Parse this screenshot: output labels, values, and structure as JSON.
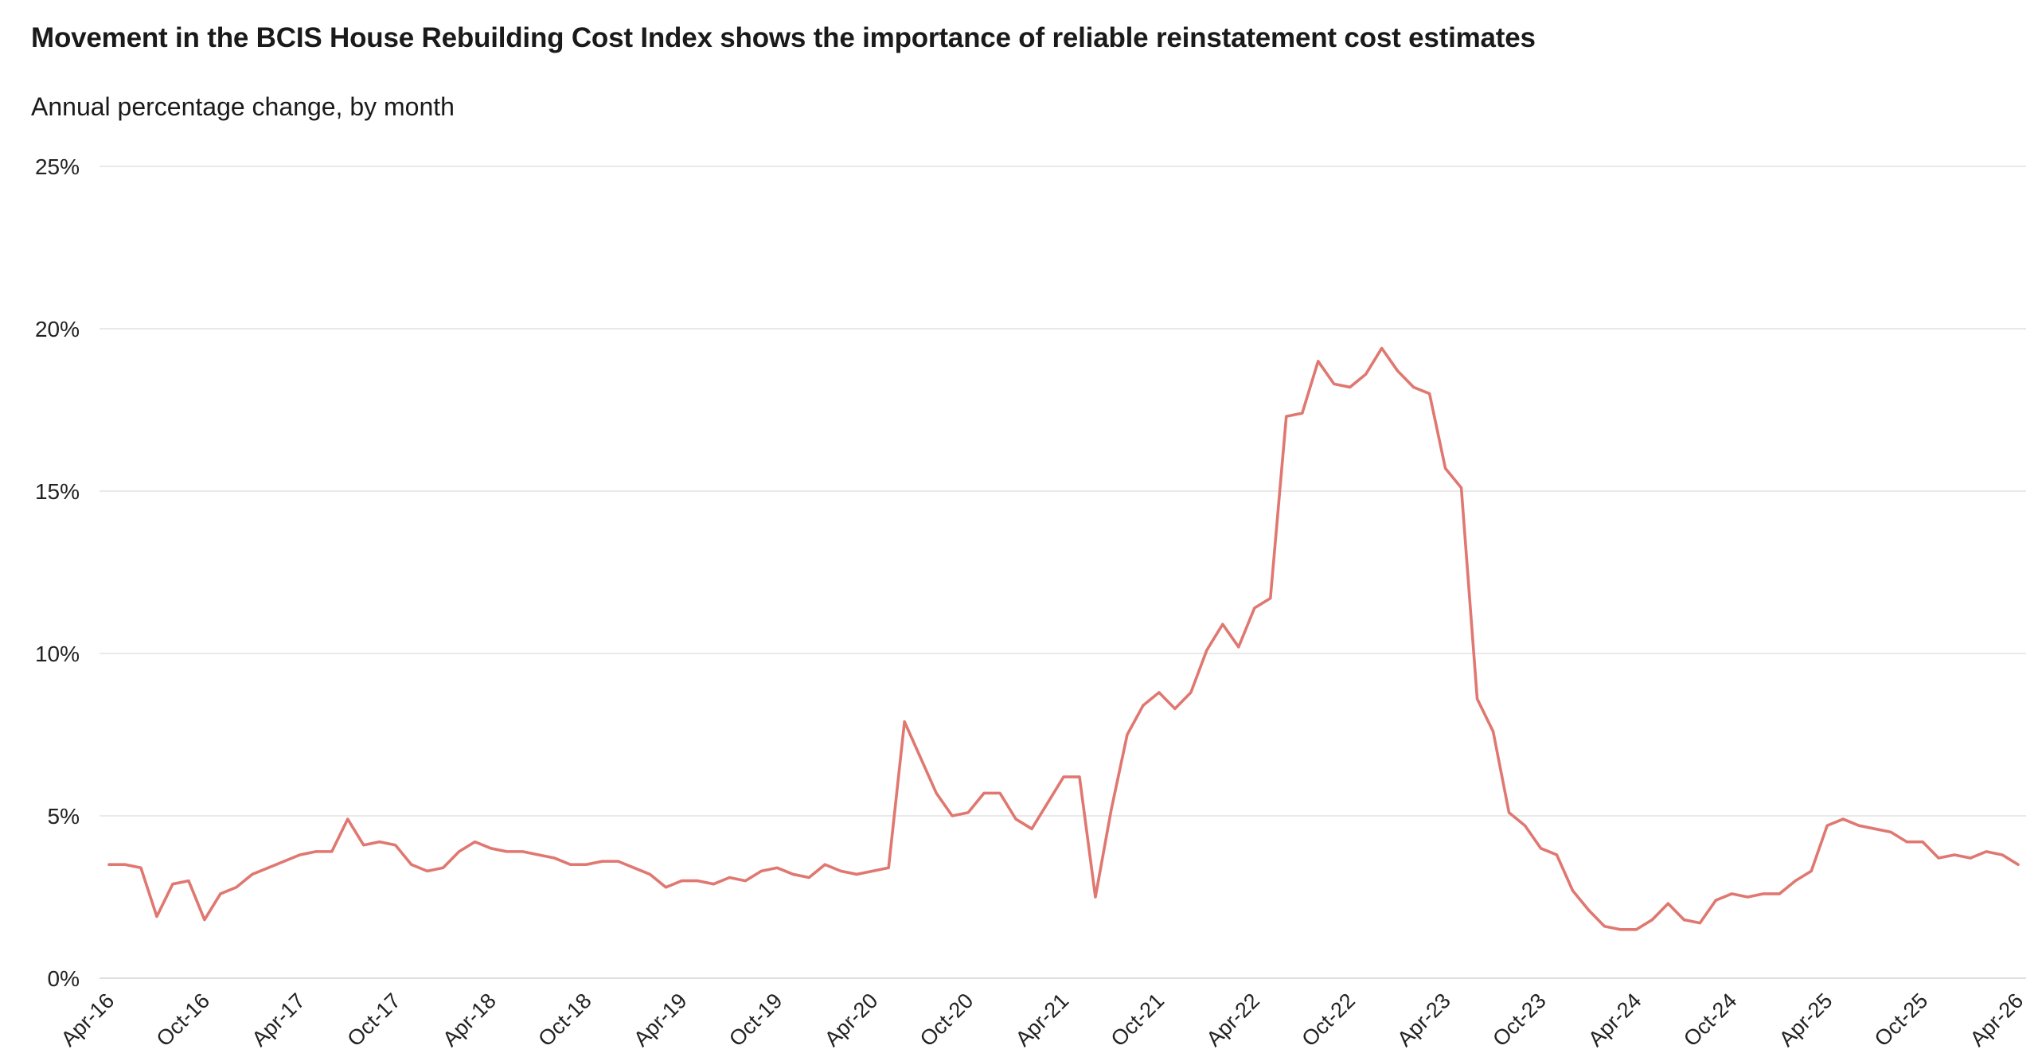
{
  "title": "Movement in the BCIS House Rebuilding Cost Index shows the importance of reliable reinstatement cost estimates",
  "subtitle": "Annual percentage change, by month",
  "chart_data": {
    "type": "line",
    "title": "Movement in the BCIS House Rebuilding Cost Index shows the importance of reliable reinstatement cost estimates",
    "subtitle": "Annual percentage change, by month",
    "xlabel": "",
    "ylabel": "",
    "ylim": [
      0,
      25
    ],
    "yticks": [
      0,
      5,
      10,
      15,
      20,
      25
    ],
    "ytick_labels": [
      "0%",
      "5%",
      "10%",
      "15%",
      "20%",
      "25%"
    ],
    "x_start": "Apr-16",
    "x_end": "Apr-26",
    "xtick_labels": [
      "Apr-16",
      "Oct-16",
      "Apr-17",
      "Oct-17",
      "Apr-18",
      "Oct-18",
      "Apr-19",
      "Oct-19",
      "Apr-20",
      "Oct-20",
      "Apr-21",
      "Oct-21",
      "Apr-22",
      "Oct-22",
      "Apr-23",
      "Oct-23",
      "Apr-24",
      "Oct-24",
      "Apr-25",
      "Oct-25",
      "Apr-26"
    ],
    "grid": true,
    "legend": "none",
    "line_color": "#e07770",
    "series": [
      {
        "values": [
          3.5,
          3.5,
          3.4,
          1.9,
          2.9,
          3.0,
          1.8,
          2.6,
          2.8,
          3.2,
          3.4,
          3.6,
          3.8,
          3.9,
          3.9,
          4.9,
          4.1,
          4.2,
          4.1,
          3.5,
          3.3,
          3.4,
          3.9,
          4.2,
          4.0,
          3.9,
          3.9,
          3.8,
          3.7,
          3.5,
          3.5,
          3.6,
          3.6,
          3.4,
          3.2,
          2.8,
          3.0,
          3.0,
          2.9,
          3.1,
          3.0,
          3.3,
          3.4,
          3.2,
          3.1,
          3.5,
          3.3,
          3.2,
          3.3,
          3.4,
          7.9,
          6.8,
          5.7,
          5.0,
          5.1,
          5.7,
          5.7,
          4.9,
          4.6,
          5.4,
          6.2,
          6.2,
          2.5,
          5.2,
          7.5,
          8.4,
          8.8,
          8.3,
          8.8,
          10.1,
          10.9,
          10.2,
          11.4,
          11.7,
          17.3,
          17.4,
          19.0,
          18.3,
          18.2,
          18.6,
          19.4,
          18.7,
          18.2,
          18.0,
          15.7,
          15.1,
          8.6,
          7.6,
          5.1,
          4.7,
          4.0,
          3.8,
          2.7,
          2.1,
          1.6,
          1.5,
          1.5,
          1.8,
          2.3,
          1.8,
          1.7,
          2.4,
          2.6,
          2.5,
          2.6,
          2.6,
          3.0,
          3.3,
          4.7,
          4.9,
          4.7,
          4.6,
          4.5,
          4.2,
          4.2,
          3.7,
          3.8,
          3.7,
          3.9,
          3.8,
          3.5
        ]
      }
    ]
  }
}
